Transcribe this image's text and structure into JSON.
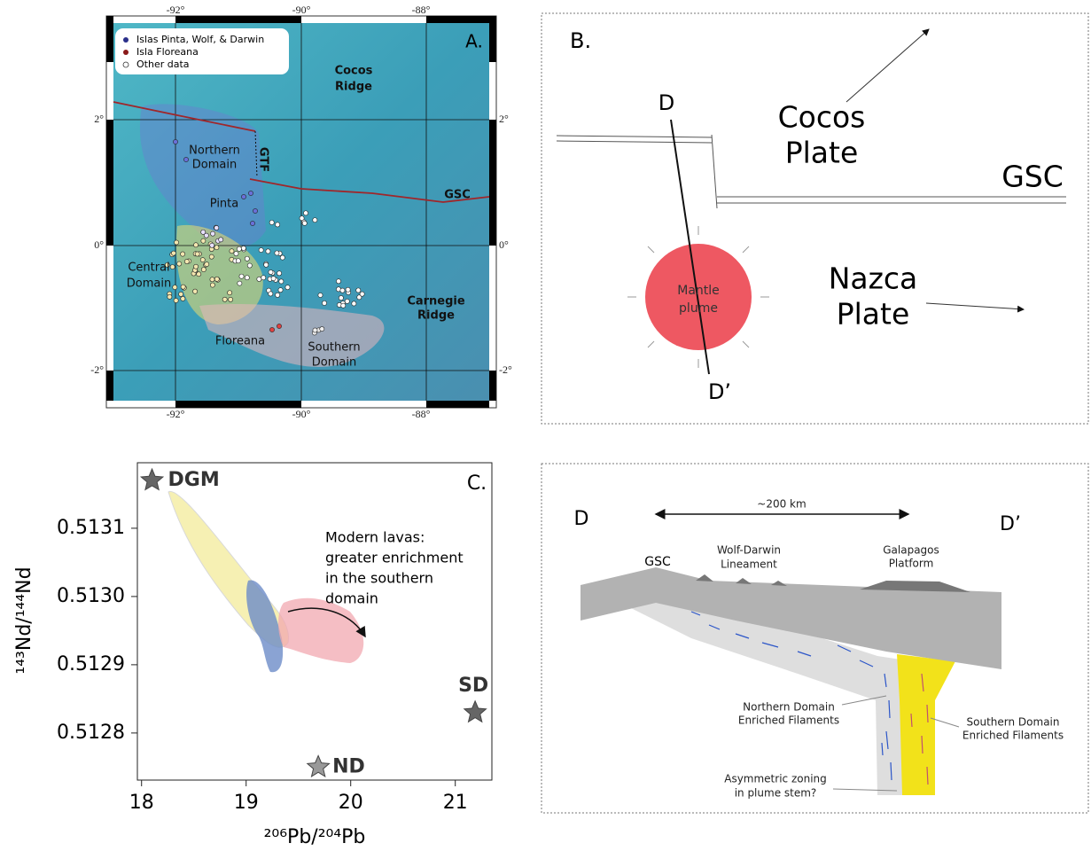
{
  "map_panel": {
    "panel_label": "A.",
    "lon_labels": [
      "-92°",
      "-90°",
      "-88°"
    ],
    "lat_labels": [
      "2°",
      "0°",
      "-2°"
    ],
    "legend": [
      "Islas Pinta, Wolf, & Darwin",
      "Isla Floreana",
      "Other data"
    ],
    "cocos_ridge": [
      "Cocos",
      "Ridge"
    ],
    "northern_domain": [
      "Northern",
      "Domain"
    ],
    "gtf": "GTF",
    "gsc": "GSC",
    "pinta": "Pinta",
    "central_domain": [
      "Central",
      "Domain"
    ],
    "carnegie_ridge": [
      "Carnegie",
      "Ridge"
    ],
    "floreana": "Floreana",
    "southern_domain": [
      "Southern",
      "Domain"
    ]
  },
  "plate_diagram": {
    "panel_label": "B.",
    "d": "D",
    "d_prime": "D’",
    "cocos_plate": [
      "Cocos",
      "Plate"
    ],
    "gsc": "GSC",
    "mantle_plume": [
      "Mantle",
      "plume"
    ],
    "nazca_plate": [
      "Nazca",
      "Plate"
    ]
  },
  "chart_data": {
    "type": "scatter",
    "panel_label": "C.",
    "x_label": "²⁰⁶Pb/²⁰⁴Pb",
    "y_label": "¹⁴³Nd/¹⁴⁴Nd",
    "annotation": [
      "Modern lavas:",
      "greater enrichment",
      "in the southern",
      "domain"
    ],
    "points": [
      {
        "label": "DGM",
        "x": 18.1,
        "y": 0.51317,
        "color": "#666666"
      },
      {
        "label": "SD",
        "x": 21.19,
        "y": 0.51283,
        "color": "#666666"
      },
      {
        "label": "ND",
        "x": 19.69,
        "y": 0.51275,
        "color": "#999999"
      }
    ],
    "xlim": [
      17.96,
      21.35
    ],
    "ylim": [
      0.512731,
      0.513196
    ],
    "xticks": [
      18,
      19,
      20,
      21
    ],
    "yticks": [
      0.5128,
      0.5129,
      {
        "value": 0.513,
        "label": "0.5130"
      },
      0.5131
    ]
  },
  "cross_section": {
    "d": "D",
    "d_prime": "D’",
    "distance": "~200 km",
    "gsc": "GSC",
    "wolf_darwin": [
      "Wolf-Darwin",
      "Lineament"
    ],
    "galapagos_platform": [
      "Galapagos",
      "Platform"
    ],
    "northern_filaments": [
      "Northern Domain",
      "Enriched Filaments"
    ],
    "southern_filaments": [
      "Southern Domain",
      "Enriched Filaments"
    ],
    "asymmetric": [
      "Asymmetric zoning",
      "in plume stem?"
    ]
  }
}
